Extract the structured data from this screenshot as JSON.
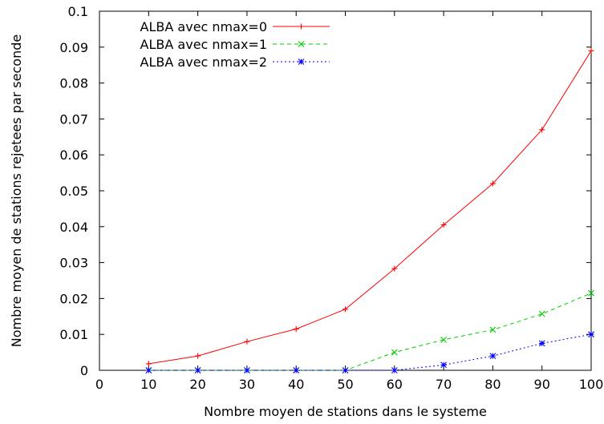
{
  "chart_data": {
    "type": "line",
    "title": "",
    "xlabel": "Nombre moyen de stations dans le systeme",
    "ylabel": "Nombre moyen de stations rejetees par seconde",
    "xlim": [
      0,
      100
    ],
    "ylim": [
      0,
      0.1
    ],
    "x_ticks": [
      "0",
      "10",
      "20",
      "30",
      "40",
      "50",
      "60",
      "70",
      "80",
      "90",
      "100"
    ],
    "y_ticks": [
      "0",
      "0.01",
      "0.02",
      "0.03",
      "0.04",
      "0.05",
      "0.06",
      "0.07",
      "0.08",
      "0.09",
      "0.1"
    ],
    "legend_position": "top-left",
    "grid": false,
    "x": [
      10,
      20,
      30,
      40,
      50,
      60,
      70,
      80,
      90,
      100
    ],
    "series": [
      {
        "name": "ALBA avec nmax=0",
        "color": "#ff0000",
        "dash": "solid",
        "marker": "plus",
        "values": [
          0.0018,
          0.004,
          0.008,
          0.0115,
          0.017,
          0.0283,
          0.0405,
          0.052,
          0.067,
          0.089
        ]
      },
      {
        "name": "ALBA avec nmax=1",
        "color": "#00cc00",
        "dash": "dashed",
        "marker": "cross",
        "values": [
          0,
          0,
          0,
          0,
          0,
          0.005,
          0.0085,
          0.0113,
          0.0157,
          0.0215
        ]
      },
      {
        "name": "ALBA avec nmax=2",
        "color": "#0000ff",
        "dash": "dotted",
        "marker": "star",
        "values": [
          0,
          0,
          0,
          0,
          0,
          0,
          0.0015,
          0.004,
          0.0075,
          0.01
        ]
      }
    ]
  }
}
